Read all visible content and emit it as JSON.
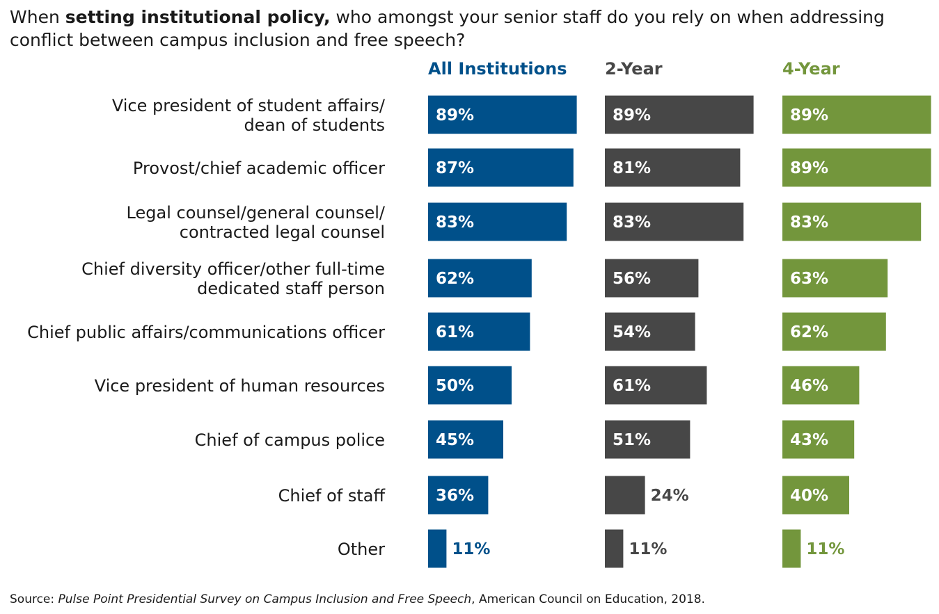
{
  "title": {
    "prefix": "When ",
    "bold": "setting institutional policy,",
    "suffix": " who amongst your senior staff do you rely on when addressing conflict between campus inclusion and free speech?"
  },
  "source": {
    "prefix": "Source: ",
    "italic": "Pulse Point Presidential Survey on Campus Inclusion and Free Speech",
    "suffix": ", American Council on Education, 2018."
  },
  "chart_data": {
    "type": "bar",
    "orientation": "horizontal",
    "title": "When setting institutional policy, who amongst your senior staff do you rely on when addressing conflict between campus inclusion and free speech?",
    "xlim": [
      0,
      100
    ],
    "unit": "%",
    "categories": [
      [
        "Vice president of student affairs/",
        "dean of students"
      ],
      [
        "Provost/chief academic officer"
      ],
      [
        "Legal counsel/general counsel/",
        "contracted legal counsel"
      ],
      [
        "Chief diversity officer/other full-time",
        "dedicated staff person"
      ],
      [
        "Chief public affairs/communications officer"
      ],
      [
        "Vice president of human resources"
      ],
      [
        "Chief of campus police"
      ],
      [
        "Chief of staff"
      ],
      [
        "Other"
      ]
    ],
    "series": [
      {
        "name": "All Institutions",
        "color": "#00508a",
        "values": [
          89,
          87,
          83,
          62,
          61,
          50,
          45,
          36,
          11
        ]
      },
      {
        "name": "2-Year",
        "color": "#474747",
        "values": [
          89,
          81,
          83,
          56,
          54,
          61,
          51,
          24,
          11
        ]
      },
      {
        "name": "4-Year",
        "color": "#73963c",
        "values": [
          89,
          89,
          83,
          63,
          62,
          46,
          43,
          40,
          11
        ]
      }
    ]
  }
}
